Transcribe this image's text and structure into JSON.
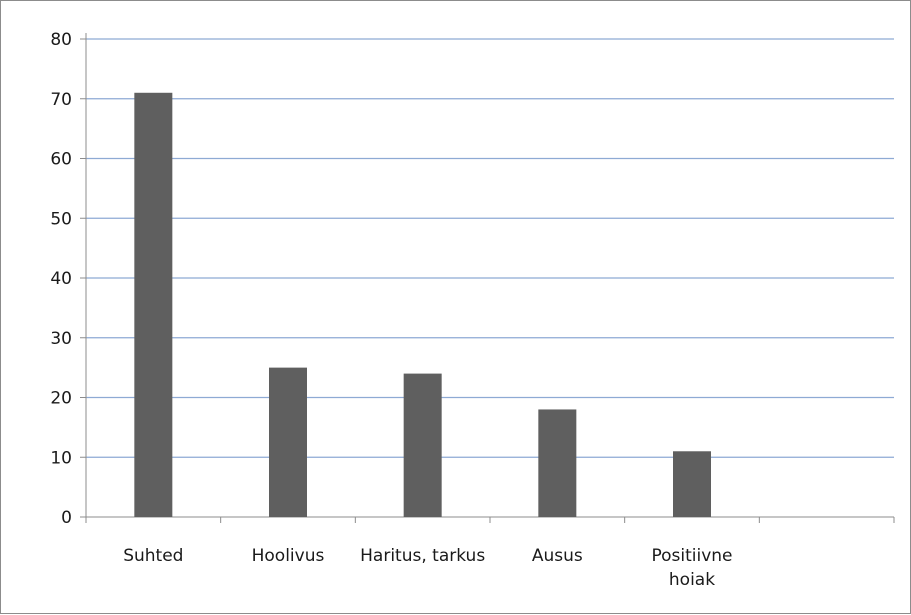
{
  "chart_data": {
    "type": "bar",
    "categories": [
      "Suhted",
      "Hoolivus",
      "Haritus, tarkus",
      "Ausus",
      "Positiivne hoiak",
      ""
    ],
    "category_lines": [
      [
        "Suhted"
      ],
      [
        "Hoolivus"
      ],
      [
        "Haritus, tarkus"
      ],
      [
        "Ausus"
      ],
      [
        "Positiivne",
        "hoiak"
      ],
      []
    ],
    "values": [
      71,
      25,
      24,
      18,
      11,
      null
    ],
    "title": "",
    "xlabel": "",
    "ylabel": "",
    "ylim": [
      0,
      80
    ],
    "yticks": [
      0,
      10,
      20,
      30,
      40,
      50,
      60,
      70,
      80
    ],
    "grid": true,
    "legend": "none",
    "colors": {
      "bar": "#5f5f5f",
      "grid": "#8eaad4",
      "axis": "#8c8c8c"
    }
  }
}
